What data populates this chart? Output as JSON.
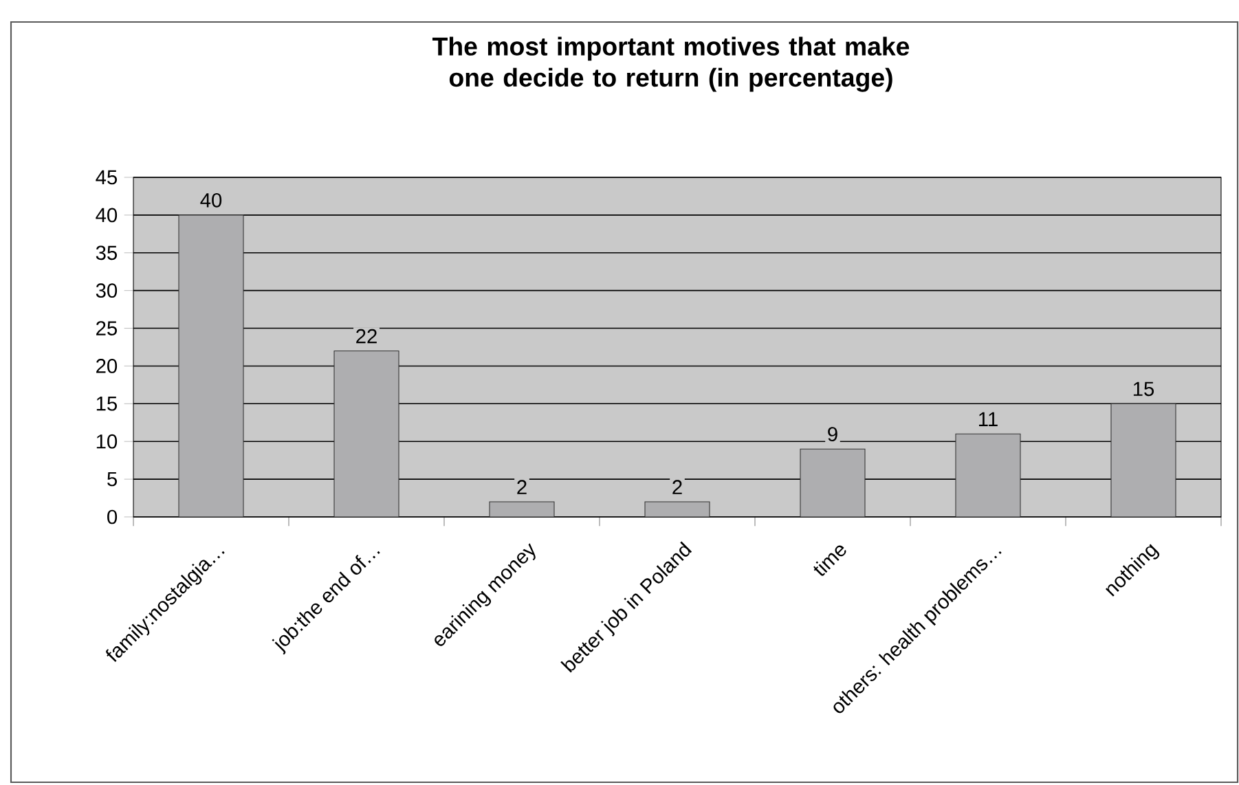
{
  "chart_data": {
    "type": "bar",
    "title": "The most important motives that make one decide to return (in percentage)",
    "categories": [
      "family:nostalgia…",
      "job:the end of…",
      "earining money",
      "better job in Poland",
      "time",
      "others: health problems…",
      "nothing"
    ],
    "values": [
      40,
      22,
      2,
      2,
      9,
      11,
      15
    ],
    "color": "#aeaeb0",
    "ylim": [
      0,
      45
    ],
    "yticks": [
      0,
      5,
      10,
      15,
      20,
      25,
      30,
      35,
      40,
      45
    ],
    "grid": "y",
    "data_labels": true
  }
}
